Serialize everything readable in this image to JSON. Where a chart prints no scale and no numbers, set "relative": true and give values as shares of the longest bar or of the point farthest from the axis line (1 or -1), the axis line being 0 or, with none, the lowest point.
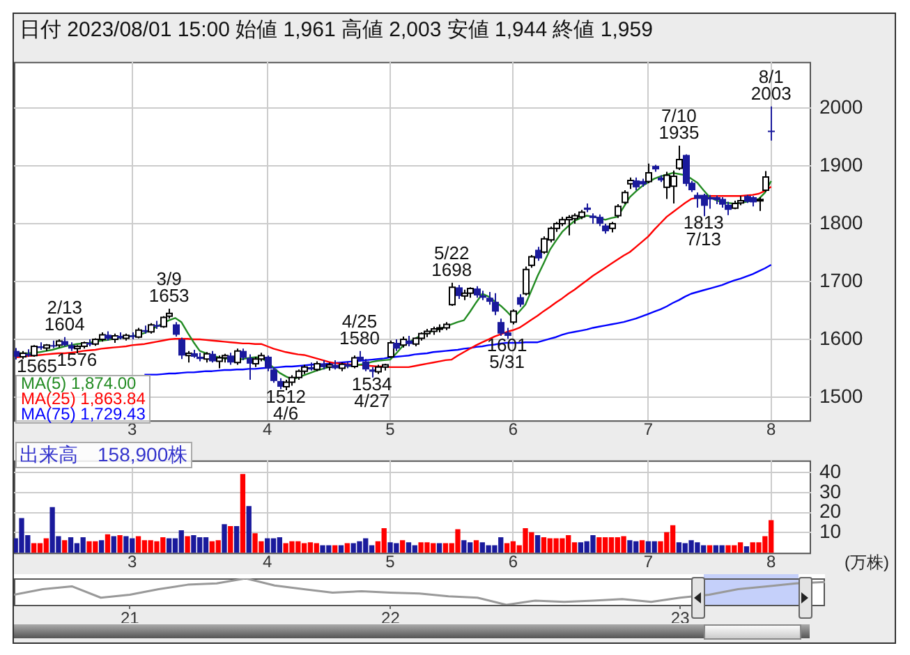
{
  "chart_data": [
    {
      "type": "candlestick",
      "title": "日付 2023/08/01 15:00 始値 1,961 高値 2,003 安値 1,944 終値 1,959",
      "categories": [
        null,
        null,
        null,
        null,
        null,
        null,
        null,
        null,
        null,
        null,
        null,
        null,
        null,
        null,
        null,
        null,
        null,
        null,
        null,
        "3",
        null,
        null,
        null,
        null,
        null,
        null,
        null,
        null,
        null,
        null,
        null,
        null,
        null,
        null,
        null,
        null,
        null,
        null,
        null,
        null,
        null,
        "4",
        null,
        null,
        null,
        null,
        null,
        null,
        null,
        null,
        null,
        null,
        null,
        null,
        null,
        null,
        null,
        null,
        null,
        null,
        null,
        "5",
        null,
        null,
        null,
        null,
        null,
        null,
        null,
        null,
        null,
        null,
        null,
        null,
        null,
        null,
        null,
        null,
        null,
        null,
        null,
        "6",
        null,
        null,
        null,
        null,
        null,
        null,
        null,
        null,
        null,
        null,
        null,
        null,
        null,
        null,
        null,
        null,
        null,
        null,
        null,
        null,
        null,
        "7",
        null,
        null,
        null,
        null,
        null,
        null,
        null,
        null,
        null,
        null,
        null,
        null,
        null,
        null,
        null,
        null,
        null,
        null,
        null,
        "8"
      ],
      "ohlc": [
        [
          1580,
          1585,
          1565,
          1570
        ],
        [
          1570,
          1580,
          1566,
          1576
        ],
        [
          1575,
          1583,
          1570,
          1572
        ],
        [
          1572,
          1590,
          1570,
          1588
        ],
        [
          1588,
          1595,
          1582,
          1585
        ],
        [
          1585,
          1592,
          1580,
          1590
        ],
        [
          1590,
          1598,
          1585,
          1588
        ],
        [
          1590,
          1600,
          1586,
          1597
        ],
        [
          1597,
          1604,
          1588,
          1590
        ],
        [
          1590,
          1595,
          1580,
          1584
        ],
        [
          1584,
          1590,
          1576,
          1588
        ],
        [
          1588,
          1596,
          1584,
          1594
        ],
        [
          1594,
          1600,
          1588,
          1591
        ],
        [
          1592,
          1602,
          1589,
          1600
        ],
        [
          1600,
          1612,
          1596,
          1608
        ],
        [
          1608,
          1614,
          1598,
          1601
        ],
        [
          1600,
          1610,
          1594,
          1606
        ],
        [
          1606,
          1612,
          1600,
          1602
        ],
        [
          1602,
          1610,
          1598,
          1607
        ],
        [
          1607,
          1612,
          1600,
          1604
        ],
        [
          1604,
          1620,
          1602,
          1616
        ],
        [
          1616,
          1624,
          1610,
          1613
        ],
        [
          1613,
          1628,
          1610,
          1625
        ],
        [
          1625,
          1632,
          1618,
          1622
        ],
        [
          1622,
          1640,
          1620,
          1638
        ],
        [
          1640,
          1653,
          1636,
          1645
        ],
        [
          1626,
          1630,
          1605,
          1608
        ],
        [
          1600,
          1603,
          1566,
          1572
        ],
        [
          1572,
          1580,
          1560,
          1576
        ],
        [
          1576,
          1582,
          1568,
          1570
        ],
        [
          1570,
          1577,
          1562,
          1566
        ],
        [
          1566,
          1578,
          1560,
          1575
        ],
        [
          1575,
          1580,
          1560,
          1562
        ],
        [
          1562,
          1572,
          1550,
          1568
        ],
        [
          1568,
          1575,
          1560,
          1572
        ],
        [
          1572,
          1577,
          1556,
          1560
        ],
        [
          1560,
          1584,
          1556,
          1580
        ],
        [
          1580,
          1584,
          1564,
          1568
        ],
        [
          1568,
          1574,
          1530,
          1558
        ],
        [
          1558,
          1570,
          1552,
          1566
        ],
        [
          1566,
          1577,
          1562,
          1572
        ],
        [
          1570,
          1572,
          1545,
          1550
        ],
        [
          1548,
          1552,
          1525,
          1528
        ],
        [
          1528,
          1533,
          1514,
          1518
        ],
        [
          1518,
          1530,
          1512,
          1526
        ],
        [
          1526,
          1538,
          1520,
          1534
        ],
        [
          1534,
          1548,
          1530,
          1545
        ],
        [
          1545,
          1556,
          1540,
          1552
        ],
        [
          1552,
          1560,
          1546,
          1548
        ],
        [
          1548,
          1562,
          1545,
          1558
        ],
        [
          1558,
          1564,
          1548,
          1552
        ],
        [
          1552,
          1560,
          1546,
          1556
        ],
        [
          1556,
          1564,
          1548,
          1550
        ],
        [
          1550,
          1560,
          1545,
          1557
        ],
        [
          1557,
          1562,
          1550,
          1553
        ],
        [
          1553,
          1572,
          1550,
          1568
        ],
        [
          1570,
          1580,
          1562,
          1564
        ],
        [
          1562,
          1566,
          1545,
          1548
        ],
        [
          1548,
          1552,
          1534,
          1544
        ],
        [
          1544,
          1556,
          1540,
          1552
        ],
        [
          1552,
          1558,
          1546,
          1556
        ],
        [
          1570,
          1598,
          1568,
          1594
        ],
        [
          1594,
          1600,
          1580,
          1584
        ],
        [
          1590,
          1605,
          1586,
          1600
        ],
        [
          1598,
          1606,
          1588,
          1592
        ],
        [
          1592,
          1603,
          1588,
          1602
        ],
        [
          1602,
          1612,
          1598,
          1610
        ],
        [
          1610,
          1618,
          1604,
          1614
        ],
        [
          1614,
          1622,
          1608,
          1618
        ],
        [
          1618,
          1626,
          1612,
          1620
        ],
        [
          1620,
          1630,
          1616,
          1626
        ],
        [
          1660,
          1698,
          1658,
          1690
        ],
        [
          1690,
          1694,
          1670,
          1675
        ],
        [
          1675,
          1686,
          1668,
          1680
        ],
        [
          1680,
          1690,
          1672,
          1688
        ],
        [
          1688,
          1692,
          1672,
          1676
        ],
        [
          1676,
          1684,
          1668,
          1672
        ],
        [
          1672,
          1682,
          1660,
          1665
        ],
        [
          1665,
          1680,
          1642,
          1648
        ],
        [
          1630,
          1636,
          1606,
          1610
        ],
        [
          1612,
          1620,
          1601,
          1606
        ],
        [
          1630,
          1652,
          1626,
          1649
        ],
        [
          1673,
          1678,
          1656,
          1660
        ],
        [
          1679,
          1726,
          1676,
          1721
        ],
        [
          1728,
          1746,
          1724,
          1743
        ],
        [
          1755,
          1760,
          1736,
          1740
        ],
        [
          1751,
          1778,
          1748,
          1774
        ],
        [
          1772,
          1795,
          1768,
          1792
        ],
        [
          1792,
          1803,
          1786,
          1800
        ],
        [
          1800,
          1812,
          1796,
          1807
        ],
        [
          1807,
          1815,
          1780,
          1811
        ],
        [
          1809,
          1818,
          1800,
          1814
        ],
        [
          1812,
          1824,
          1808,
          1820
        ],
        [
          1828,
          1835,
          1820,
          1824
        ],
        [
          1814,
          1818,
          1800,
          1810
        ],
        [
          1812,
          1816,
          1796,
          1800
        ],
        [
          1797,
          1800,
          1783,
          1787
        ],
        [
          1792,
          1803,
          1785,
          1800
        ],
        [
          1814,
          1834,
          1810,
          1830
        ],
        [
          1837,
          1858,
          1834,
          1854
        ],
        [
          1869,
          1880,
          1860,
          1875
        ],
        [
          1875,
          1880,
          1858,
          1863
        ],
        [
          1874,
          1878,
          1864,
          1868
        ],
        [
          1873,
          1904,
          1870,
          1888
        ],
        [
          1900,
          1902,
          1890,
          1894
        ],
        [
          1880,
          1884,
          1872,
          1875
        ],
        [
          1863,
          1890,
          1843,
          1884
        ],
        [
          1865,
          1892,
          1835,
          1882
        ],
        [
          1896,
          1935,
          1893,
          1911
        ],
        [
          1919,
          1920,
          1865,
          1869
        ],
        [
          1871,
          1874,
          1855,
          1858
        ],
        [
          1850,
          1854,
          1828,
          1843
        ],
        [
          1850,
          1852,
          1813,
          1831
        ],
        [
          1846,
          1850,
          1826,
          1842
        ],
        [
          1846,
          1849,
          1834,
          1841
        ],
        [
          1843,
          1846,
          1828,
          1833
        ],
        [
          1833,
          1838,
          1815,
          1824
        ],
        [
          1827,
          1840,
          1825,
          1835
        ],
        [
          1836,
          1848,
          1832,
          1840
        ],
        [
          1848,
          1850,
          1836,
          1838
        ],
        [
          1846,
          1848,
          1830,
          1837
        ],
        [
          1840,
          1846,
          1822,
          1842
        ],
        [
          1858,
          1891,
          1855,
          1881
        ],
        [
          1961,
          2003,
          1944,
          1959
        ]
      ],
      "series": [
        {
          "type": "line",
          "name": "MA(5) 1,874.00",
          "color": "#228b22",
          "values": [
            1577,
            1576,
            1576,
            1577,
            1578,
            1580,
            1582,
            1585,
            1588,
            1590,
            1592,
            1593,
            1594,
            1596,
            1598,
            1599,
            1601,
            1603,
            1604,
            1606,
            1607,
            1611,
            1616,
            1622,
            1628,
            1633,
            1637,
            1630,
            1612,
            1595,
            1580,
            1576,
            1572,
            1569,
            1567,
            1566,
            1565,
            1566,
            1568,
            1569,
            1569,
            1560,
            1551,
            1542,
            1536,
            1531,
            1534,
            1538,
            1542,
            1546,
            1549,
            1552,
            1553,
            1554,
            1554,
            1554,
            1556,
            1558,
            1561,
            1563,
            1564,
            1565,
            1576,
            1588,
            1595,
            1601,
            1607,
            1611,
            1615,
            1618,
            1622,
            1626,
            1630,
            1633,
            1648,
            1664,
            1679,
            1674,
            1666,
            1658,
            1648,
            1637,
            1648,
            1660,
            1685,
            1710,
            1732,
            1755,
            1771,
            1786,
            1796,
            1805,
            1810,
            1814,
            1812,
            1810,
            1807,
            1810,
            1812,
            1829,
            1846,
            1856,
            1865,
            1872,
            1878,
            1882,
            1885,
            1888,
            1886,
            1884,
            1878,
            1871,
            1858,
            1846,
            1841,
            1837,
            1836,
            1835,
            1836,
            1838,
            1840,
            1843,
            1854,
            1874
          ]
        },
        {
          "type": "line",
          "name": "MA(25) 1,863.84",
          "color": "#ff0000",
          "values": [
            1569,
            1570,
            1571,
            1572,
            1573,
            1574,
            1575,
            1576,
            1576,
            1577,
            1578,
            1580,
            1581,
            1582,
            1584,
            1585,
            1586,
            1587,
            1588,
            1590,
            1591,
            1592,
            1594,
            1596,
            1598,
            1600,
            1601,
            1601,
            1601,
            1600,
            1600,
            1599,
            1598,
            1597,
            1596,
            1595,
            1594,
            1593,
            1593,
            1592,
            1592,
            1588,
            1584,
            1581,
            1578,
            1576,
            1574,
            1573,
            1570,
            1567,
            1564,
            1561,
            1559,
            1558,
            1557,
            1556,
            1556,
            1555,
            1554,
            1553,
            1553,
            1552,
            1552,
            1552,
            1552,
            1554,
            1556,
            1558,
            1560,
            1562,
            1564,
            1565,
            1572,
            1578,
            1584,
            1590,
            1595,
            1600,
            1605,
            1609,
            1613,
            1616,
            1620,
            1627,
            1634,
            1641,
            1649,
            1656,
            1664,
            1671,
            1679,
            1686,
            1694,
            1702,
            1710,
            1717,
            1724,
            1731,
            1738,
            1745,
            1751,
            1760,
            1769,
            1778,
            1790,
            1801,
            1812,
            1820,
            1828,
            1836,
            1843,
            1845,
            1847,
            1848,
            1848,
            1848,
            1848,
            1848,
            1848,
            1849,
            1850,
            1852,
            1857,
            1864
          ]
        },
        {
          "type": "line",
          "name": "MA(75) 1,729.43",
          "color": "#0000ff",
          "values": [
            null,
            null,
            null,
            null,
            null,
            null,
            null,
            null,
            null,
            null,
            null,
            null,
            null,
            null,
            null,
            null,
            null,
            null,
            null,
            null,
            null,
            1539,
            1539,
            1539,
            1540,
            1541,
            1541,
            1542,
            1543,
            1543,
            1544,
            1545,
            1545,
            1546,
            1547,
            1547,
            1548,
            1548,
            1549,
            1549,
            1550,
            1551,
            1551,
            1552,
            1553,
            1553,
            1554,
            1555,
            1556,
            1557,
            1557,
            1558,
            1559,
            1560,
            1561,
            1562,
            1563,
            1564,
            1565,
            1566,
            1567,
            1569,
            1570,
            1571,
            1572,
            1574,
            1575,
            1576,
            1578,
            1579,
            1580,
            1581,
            1582,
            1584,
            1585,
            1587,
            1588,
            1590,
            1591,
            1593,
            1594,
            1594,
            1594,
            1595,
            1595,
            1595,
            1598,
            1601,
            1604,
            1608,
            1611,
            1613,
            1615,
            1617,
            1620,
            1622,
            1624,
            1626,
            1628,
            1630,
            1633,
            1636,
            1640,
            1644,
            1648,
            1652,
            1657,
            1663,
            1668,
            1674,
            1679,
            1682,
            1685,
            1688,
            1691,
            1694,
            1698,
            1702,
            1705,
            1709,
            1713,
            1718,
            1723,
            1729
          ]
        }
      ],
      "marker": "none",
      "ylim": [
        1460,
        2080
      ],
      "yticks": [
        1500,
        1600,
        1700,
        1800,
        1900,
        2000
      ],
      "grid": true,
      "legend": "bottom left",
      "annotations": [
        {
          "text": "1565",
          "y": 1565
        },
        {
          "text": "2/13\n1604",
          "y": 1604
        },
        {
          "text": "1576",
          "y": 1576
        },
        {
          "text": "3/9\n1653",
          "y": 1653
        },
        {
          "text": "1512\n4/6",
          "y": 1512
        },
        {
          "text": "4/25\n1580",
          "y": 1580
        },
        {
          "text": "1534\n4/27",
          "y": 1534
        },
        {
          "text": "5/22\n1698",
          "y": 1698
        },
        {
          "text": "1601\n5/31",
          "y": 1601
        },
        {
          "text": "7/10\n1935",
          "y": 1935
        },
        {
          "text": "1813\n7/13",
          "y": 1813
        },
        {
          "text": "8/1\n2003",
          "y": 2003
        }
      ]
    },
    {
      "type": "bar",
      "title": "出来高　158,900株",
      "ylabel": "(万株)",
      "categories": [
        null,
        null,
        null,
        null,
        null,
        null,
        null,
        null,
        null,
        null,
        null,
        null,
        null,
        null,
        null,
        null,
        null,
        null,
        null,
        "3",
        null,
        null,
        null,
        null,
        null,
        null,
        null,
        null,
        null,
        null,
        null,
        null,
        null,
        null,
        null,
        null,
        null,
        null,
        null,
        null,
        null,
        "4",
        null,
        null,
        null,
        null,
        null,
        null,
        null,
        null,
        null,
        null,
        null,
        null,
        null,
        null,
        null,
        null,
        null,
        null,
        null,
        "5",
        null,
        null,
        null,
        null,
        null,
        null,
        null,
        null,
        null,
        null,
        null,
        null,
        null,
        null,
        null,
        null,
        null,
        null,
        null,
        "6",
        null,
        null,
        null,
        null,
        null,
        null,
        null,
        null,
        null,
        null,
        null,
        null,
        null,
        null,
        null,
        null,
        null,
        null,
        null,
        null,
        null,
        "7",
        null,
        null,
        null,
        null,
        null,
        null,
        null,
        null,
        null,
        null,
        null,
        null,
        null,
        null,
        null,
        null,
        null,
        null,
        null,
        "8"
      ],
      "values": [
        7,
        17,
        8.5,
        4.5,
        4.5,
        7,
        22.5,
        8,
        6,
        7.5,
        4.5,
        7.5,
        5.5,
        5.5,
        6,
        9,
        8,
        8.5,
        8,
        7,
        8,
        6,
        6,
        5.5,
        7.5,
        7,
        7,
        11,
        8,
        8.5,
        7.5,
        7.5,
        5.5,
        6,
        14,
        13,
        13,
        39,
        23,
        9.5,
        5.5,
        7,
        7,
        7.5,
        4.5,
        5.5,
        5.5,
        4.5,
        5,
        4.5,
        3.5,
        3.5,
        3.5,
        3.5,
        4.5,
        4.5,
        5.5,
        7,
        3.5,
        5.5,
        12,
        5,
        4.5,
        6,
        5,
        3.5,
        5,
        5,
        4.5,
        4.5,
        4.5,
        4.5,
        11.5,
        6,
        5,
        6,
        5,
        3.5,
        3.5,
        7.5,
        4.5,
        5.5,
        3.5,
        12,
        10,
        8.5,
        7.5,
        7,
        7,
        7,
        8.5,
        5,
        5,
        5.5,
        8.5,
        7.5,
        7.5,
        7.5,
        7.5,
        8,
        6,
        5.5,
        6,
        5.5,
        5.5,
        5.5,
        10,
        13.5,
        5,
        4.5,
        6,
        5,
        3.5,
        3.5,
        3.5,
        3.5,
        3.5,
        3.5,
        5,
        3,
        5,
        5,
        8,
        16
      ],
      "colors": [
        "#1a1a9c",
        "#1a1a9c",
        "#1a1a9c",
        "#ff0000",
        "#ff0000",
        "#ff0000",
        "#1a1a9c",
        "#1a1a9c",
        "#ff0000",
        "#1a1a9c",
        "#1a1a9c",
        "#1a1a9c",
        "#ff0000",
        "#ff0000",
        "#1a1a9c",
        "#ff0000",
        "#1a1a9c",
        "#ff0000",
        "#1a1a9c",
        "#1a1a9c",
        "#ff0000",
        "#ff0000",
        "#ff0000",
        "#ff0000",
        "#ff0000",
        "#1a1a9c",
        "#1a1a9c",
        "#1a1a9c",
        "#ff0000",
        "#1a1a9c",
        "#1a1a9c",
        "#1a1a9c",
        "#ff0000",
        "#ff0000",
        "#1a1a9c",
        "#ff0000",
        "#1a1a9c",
        "#ff0000",
        "#1a1a9c",
        "#ff0000",
        "#ff0000",
        "#1a1a9c",
        "#1a1a9c",
        "#1a1a9c",
        "#ff0000",
        "#ff0000",
        "#ff0000",
        "#ff0000",
        "#ff0000",
        "#ff0000",
        "#1a1a9c",
        "#1a1a9c",
        "#ff0000",
        "#1a1a9c",
        "#ff0000",
        "#1a1a9c",
        "#1a1a9c",
        "#1a1a9c",
        "#1a1a9c",
        "#ff0000",
        "#ff0000",
        "#1a1a9c",
        "#1a1a9c",
        "#ff0000",
        "#1a1a9c",
        "#1a1a9c",
        "#ff0000",
        "#ff0000",
        "#ff0000",
        "#1a1a9c",
        "#ff0000",
        "#ff0000",
        "#ff0000",
        "#1a1a9c",
        "#1a1a9c",
        "#ff0000",
        "#1a1a9c",
        "#1a1a9c",
        "#1a1a9c",
        "#1a1a9c",
        "#ff0000",
        "#ff0000",
        "#ff0000",
        "#ff0000",
        "#ff0000",
        "#1a1a9c",
        "#ff0000",
        "#ff0000",
        "#ff0000",
        "#ff0000",
        "#ff0000",
        "#ff0000",
        "#1a1a9c",
        "#1a1a9c",
        "#1a1a9c",
        "#ff0000",
        "#ff0000",
        "#ff0000",
        "#ff0000",
        "#ff0000",
        "#1a1a9c",
        "#1a1a9c",
        "#ff0000",
        "#1a1a9c",
        "#1a1a9c",
        "#ff0000",
        "#ff0000",
        "#ff0000",
        "#1a1a9c",
        "#1a1a9c",
        "#1a1a9c",
        "#1a1a9c",
        "#1a1a9c",
        "#ff0000",
        "#1a1a9c",
        "#1a1a9c",
        "#ff0000",
        "#ff0000",
        "#ff0000",
        "#1a1a9c",
        "#ff0000",
        "#ff0000",
        "#ff0000",
        "#ff0000"
      ],
      "ylim": [
        0,
        46
      ],
      "yticks": [
        10,
        20,
        30,
        40
      ],
      "grid": true
    },
    {
      "type": "line",
      "relative": true,
      "color": "#999999",
      "marker": "none",
      "categories": [
        null,
        null,
        null,
        null,
        "21",
        null,
        null,
        null,
        null,
        null,
        null,
        null,
        null,
        "22",
        null,
        null,
        null,
        null,
        null,
        null,
        null,
        null,
        null,
        "23",
        null,
        null,
        null,
        null,
        null
      ],
      "values": [
        0.38,
        0.59,
        0.7,
        0.27,
        0.38,
        0.59,
        0.76,
        0.81,
        1,
        0.73,
        0.59,
        0.46,
        0.51,
        0.46,
        0.43,
        0.32,
        0.27,
        0,
        0.16,
        0.11,
        0.16,
        0.22,
        0.11,
        0.27,
        0.38,
        0.59,
        0.7,
        0.81,
        0.86
      ]
    }
  ]
}
